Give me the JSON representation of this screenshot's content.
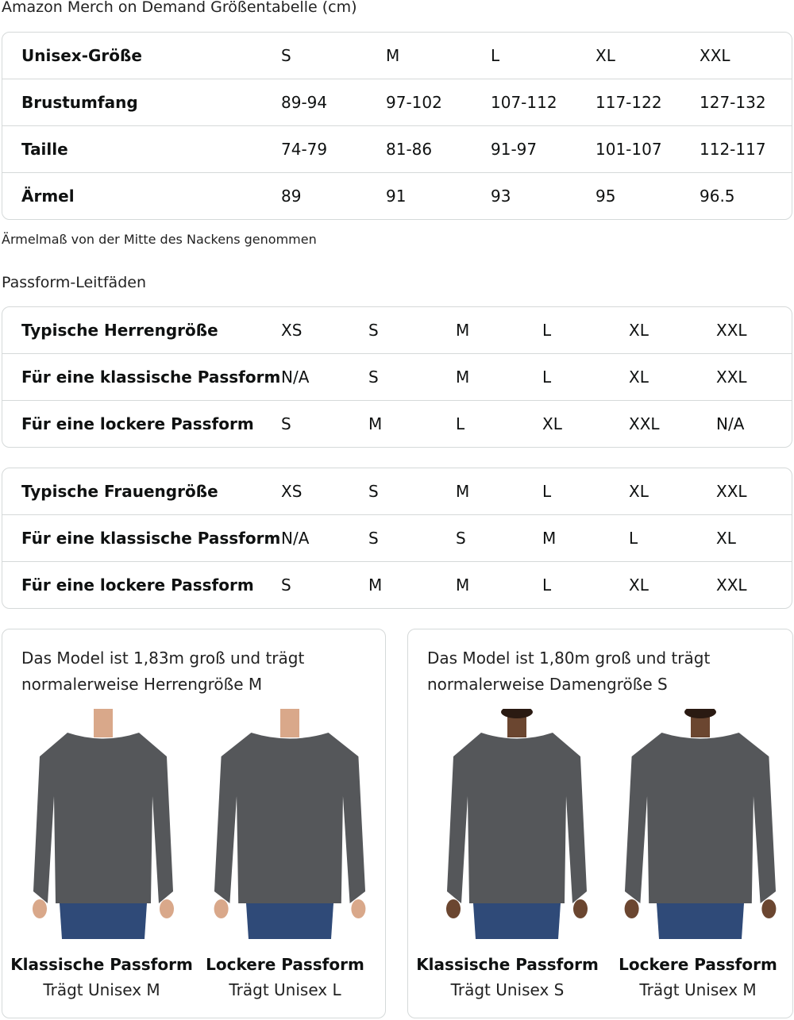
{
  "title": "Amazon Merch on Demand Größentabelle (cm)",
  "size_table": {
    "rows": [
      {
        "label": "Unisex-Größe",
        "values": [
          "S",
          "M",
          "L",
          "XL",
          "XXL"
        ]
      },
      {
        "label": "Brustumfang",
        "values": [
          "89-94",
          "97-102",
          "107-112",
          "117-122",
          "127-132"
        ]
      },
      {
        "label": "Taille",
        "values": [
          "74-79",
          "81-86",
          "91-97",
          "101-107",
          "112-117"
        ]
      },
      {
        "label": "Ärmel",
        "values": [
          "89",
          "91",
          "93",
          "95",
          "96.5"
        ]
      }
    ]
  },
  "note": "Ärmelmaß von der Mitte des Nackens genommen",
  "fit_heading": "Passform-Leitfäden",
  "men_table": {
    "rows": [
      {
        "label": "Typische Herrengröße",
        "values": [
          "XS",
          "S",
          "M",
          "L",
          "XL",
          "XXL"
        ]
      },
      {
        "label": "Für eine klassische Passform",
        "values": [
          "N/A",
          "S",
          "M",
          "L",
          "XL",
          "XXL"
        ]
      },
      {
        "label": "Für eine lockere Passform",
        "values": [
          "S",
          "M",
          "L",
          "XL",
          "XXL",
          "N/A"
        ]
      }
    ]
  },
  "women_table": {
    "rows": [
      {
        "label": "Typische Frauengröße",
        "values": [
          "XS",
          "S",
          "M",
          "L",
          "XL",
          "XXL"
        ]
      },
      {
        "label": "Für eine klassische Passform",
        "values": [
          "N/A",
          "S",
          "S",
          "M",
          "L",
          "XL"
        ]
      },
      {
        "label": "Für eine lockere Passform",
        "values": [
          "S",
          "M",
          "M",
          "L",
          "XL",
          "XXL"
        ]
      }
    ]
  },
  "cards": [
    {
      "caption_line1": "Das Model ist 1,83m groß und trägt",
      "caption_line2": "normalerweise Herrengröße M",
      "figures": [
        {
          "name": "Klassische Passform",
          "wears": "Trägt Unisex M"
        },
        {
          "name": "Lockere Passform",
          "wears": "Trägt Unisex L"
        }
      ]
    },
    {
      "caption_line1": "Das Model ist 1,80m groß und trägt",
      "caption_line2": "normalerweise Damengröße S",
      "figures": [
        {
          "name": "Klassische Passform",
          "wears": "Trägt Unisex S"
        },
        {
          "name": "Lockere Passform",
          "wears": "Trägt Unisex M"
        }
      ]
    }
  ],
  "colors": {
    "border": "#d5d9d9",
    "sweatshirt": "#55575a",
    "jeans": "#2f4a78"
  }
}
